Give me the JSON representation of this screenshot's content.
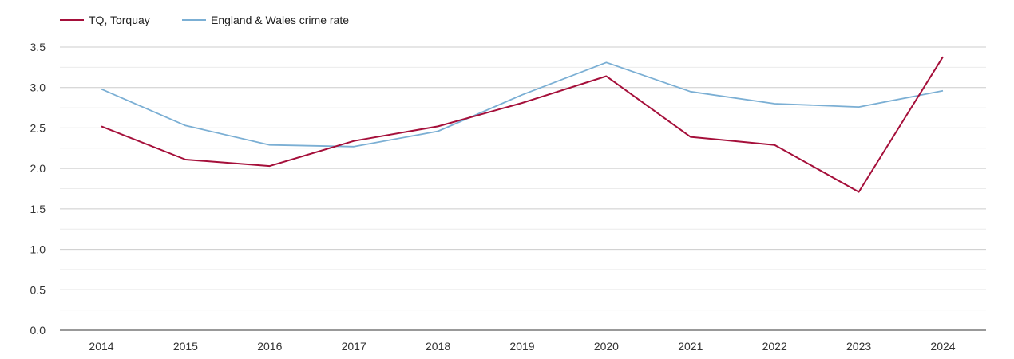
{
  "chart_data": {
    "type": "line",
    "x": [
      "2014",
      "2015",
      "2016",
      "2017",
      "2018",
      "2019",
      "2020",
      "2021",
      "2022",
      "2023",
      "2024"
    ],
    "series": [
      {
        "name": "TQ, Torquay",
        "color": "#a50f3a",
        "values": [
          2.52,
          2.11,
          2.03,
          2.34,
          2.52,
          2.81,
          3.14,
          2.39,
          2.29,
          1.71,
          3.38
        ]
      },
      {
        "name": "England & Wales crime rate",
        "color": "#7bafd4",
        "values": [
          2.98,
          2.53,
          2.29,
          2.27,
          2.46,
          2.91,
          3.31,
          2.95,
          2.8,
          2.76,
          2.96
        ]
      }
    ],
    "y_ticks": [
      "0.0",
      "0.5",
      "1.0",
      "1.5",
      "2.0",
      "2.5",
      "3.0",
      "3.5"
    ],
    "ylim": [
      0,
      3.5
    ],
    "grid": true,
    "legend_placement": "top-left",
    "title": "",
    "xlabel": "",
    "ylabel": ""
  }
}
